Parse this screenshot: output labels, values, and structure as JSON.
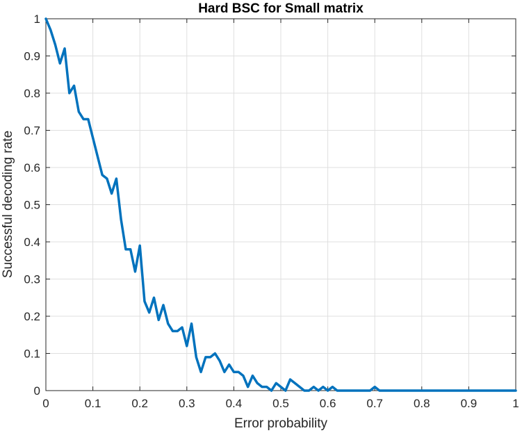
{
  "chart_data": {
    "type": "line",
    "title": "Hard BSC for Small matrix",
    "xlabel": "Error probability",
    "ylabel": "Successful decoding rate",
    "xlim": [
      0,
      1
    ],
    "ylim": [
      0,
      1
    ],
    "grid": true,
    "xticks": [
      "0",
      "0.1",
      "0.2",
      "0.3",
      "0.4",
      "0.5",
      "0.6",
      "0.7",
      "0.8",
      "0.9",
      "1"
    ],
    "yticks": [
      "0",
      "0.1",
      "0.2",
      "0.3",
      "0.4",
      "0.5",
      "0.6",
      "0.7",
      "0.8",
      "0.9",
      "1"
    ],
    "series": [
      {
        "color": "#0072BD",
        "x": [
          0,
          0.01,
          0.02,
          0.03,
          0.04,
          0.05,
          0.06,
          0.07,
          0.08,
          0.09,
          0.1,
          0.11,
          0.12,
          0.13,
          0.14,
          0.15,
          0.16,
          0.17,
          0.18,
          0.19,
          0.2,
          0.21,
          0.22,
          0.23,
          0.24,
          0.25,
          0.26,
          0.27,
          0.28,
          0.29,
          0.3,
          0.31,
          0.32,
          0.33,
          0.34,
          0.35,
          0.36,
          0.37,
          0.38,
          0.39,
          0.4,
          0.41,
          0.42,
          0.43,
          0.44,
          0.45,
          0.46,
          0.47,
          0.48,
          0.49,
          0.5,
          0.51,
          0.52,
          0.53,
          0.54,
          0.55,
          0.56,
          0.57,
          0.58,
          0.59,
          0.6,
          0.61,
          0.62,
          0.63,
          0.64,
          0.65,
          0.66,
          0.67,
          0.68,
          0.69,
          0.7,
          0.71,
          0.72,
          0.73,
          0.74,
          0.75,
          0.76,
          0.77,
          0.78,
          0.79,
          0.8,
          0.81,
          0.82,
          0.83,
          0.84,
          0.85,
          0.86,
          0.87,
          0.88,
          0.89,
          0.9,
          0.91,
          0.92,
          0.93,
          0.94,
          0.95,
          0.96,
          0.97,
          0.98,
          0.99,
          1.0
        ],
        "y": [
          1.0,
          0.97,
          0.93,
          0.88,
          0.92,
          0.8,
          0.82,
          0.75,
          0.73,
          0.73,
          0.68,
          0.63,
          0.58,
          0.57,
          0.53,
          0.57,
          0.46,
          0.38,
          0.38,
          0.32,
          0.39,
          0.24,
          0.21,
          0.25,
          0.19,
          0.23,
          0.18,
          0.16,
          0.16,
          0.17,
          0.12,
          0.18,
          0.09,
          0.05,
          0.09,
          0.09,
          0.1,
          0.08,
          0.05,
          0.07,
          0.05,
          0.05,
          0.04,
          0.01,
          0.04,
          0.02,
          0.01,
          0.01,
          0.0,
          0.02,
          0.01,
          0.0,
          0.03,
          0.02,
          0.01,
          0.0,
          0.0,
          0.01,
          0.0,
          0.01,
          0.0,
          0.01,
          0.0,
          0.0,
          0.0,
          0.0,
          0.0,
          0.0,
          0.0,
          0.0,
          0.01,
          0.0,
          0.0,
          0.0,
          0.0,
          0.0,
          0.0,
          0.0,
          0.0,
          0.0,
          0.0,
          0.0,
          0.0,
          0.0,
          0.0,
          0.0,
          0.0,
          0.0,
          0.0,
          0.0,
          0.0,
          0.0,
          0.0,
          0.0,
          0.0,
          0.0,
          0.0,
          0.0,
          0.0,
          0.0,
          0.0
        ]
      }
    ]
  }
}
